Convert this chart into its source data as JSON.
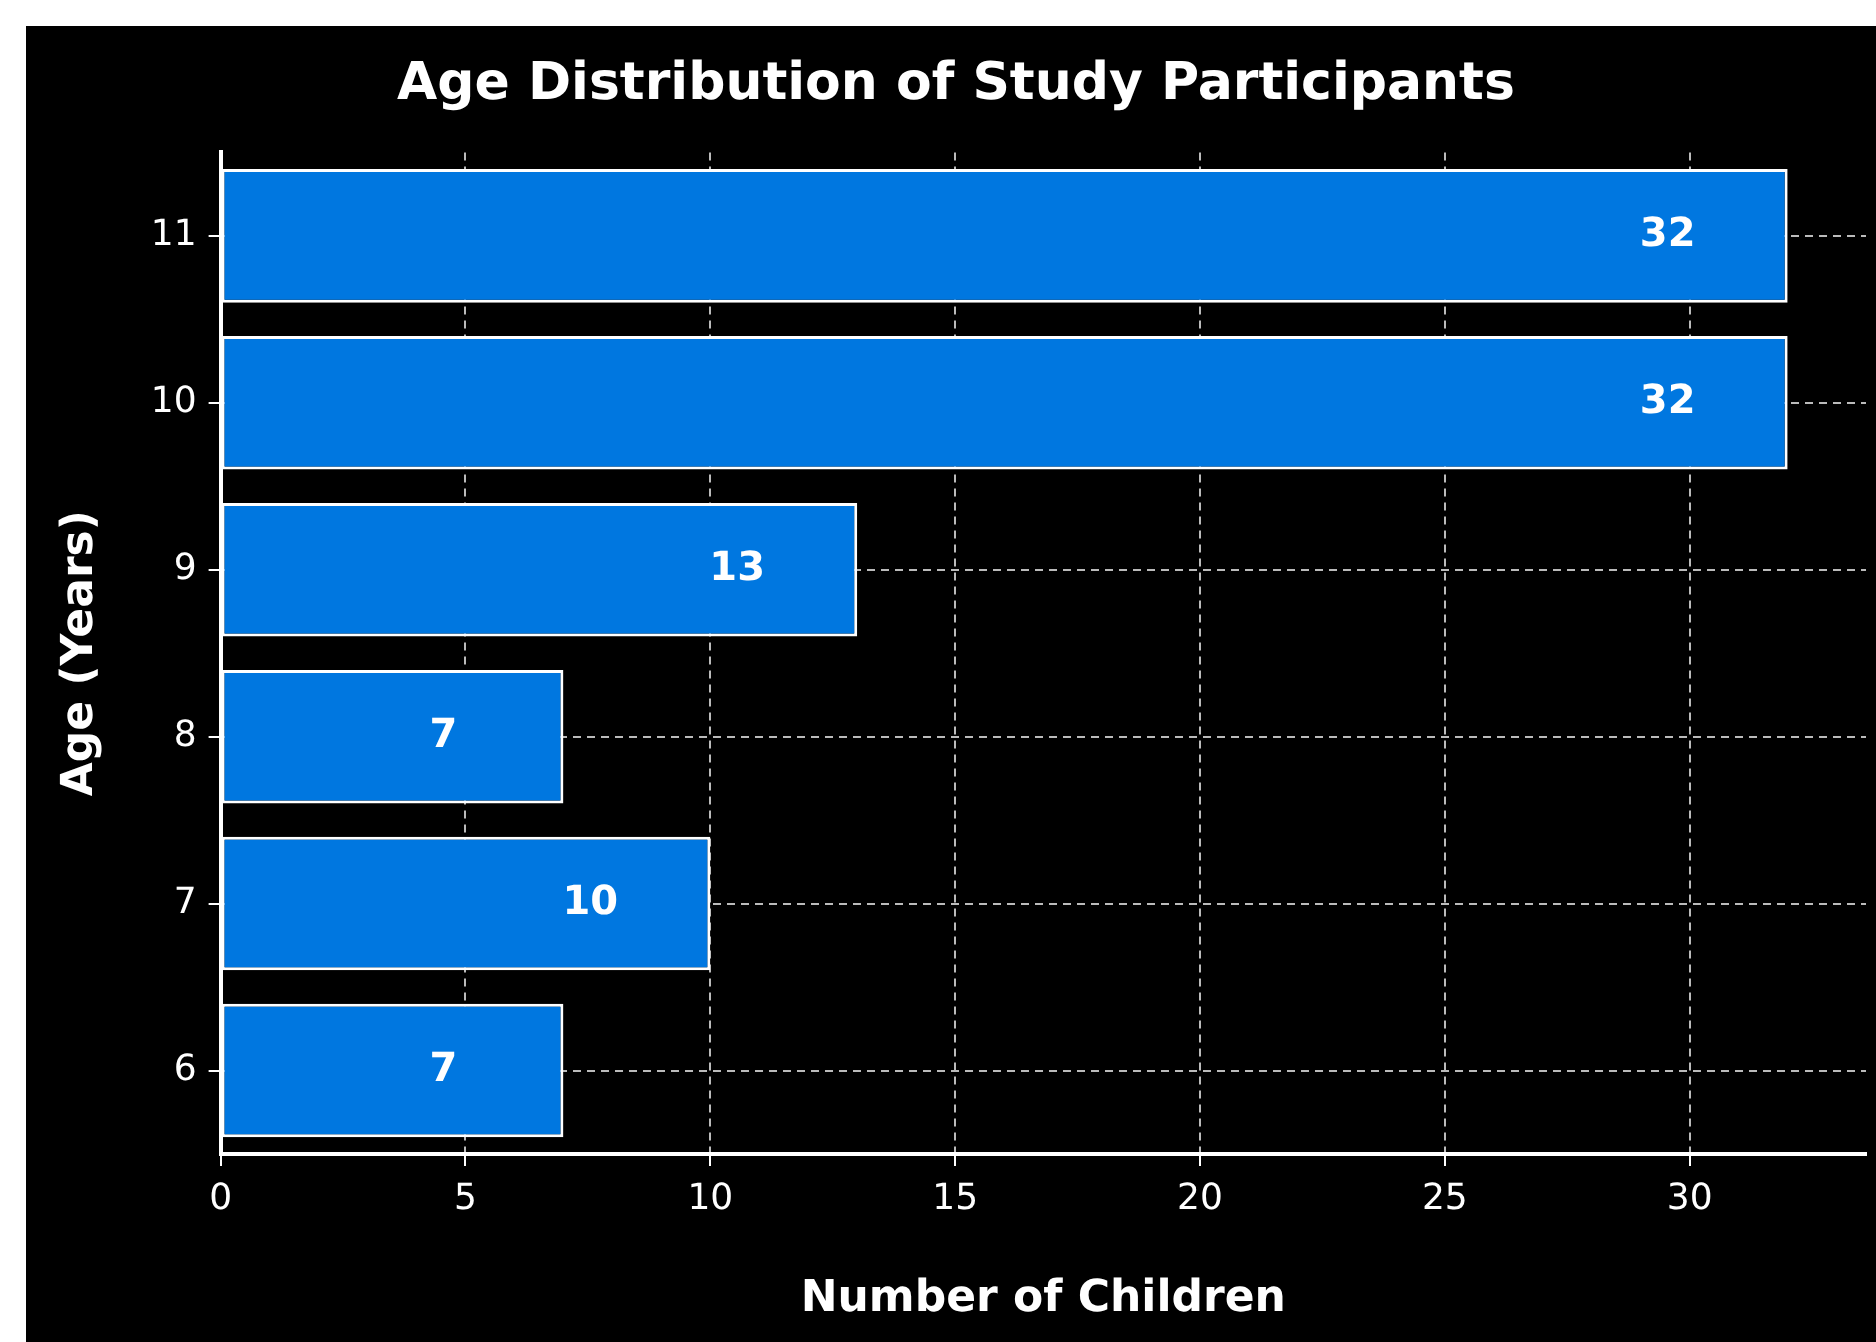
{
  "chart_data": {
    "type": "bar",
    "orientation": "horizontal",
    "title": "Age Distribution of Study Participants",
    "xlabel": "Number of Children",
    "ylabel": "Age (Years)",
    "categories": [
      "11",
      "10",
      "9",
      "8",
      "7",
      "6"
    ],
    "values": [
      32,
      32,
      13,
      7,
      10,
      7
    ],
    "color": "#0077e0",
    "xlim": [
      0,
      33.6
    ],
    "xticks": [
      0,
      5,
      10,
      15,
      20,
      25,
      30
    ],
    "grid": true,
    "data_labels": true
  }
}
